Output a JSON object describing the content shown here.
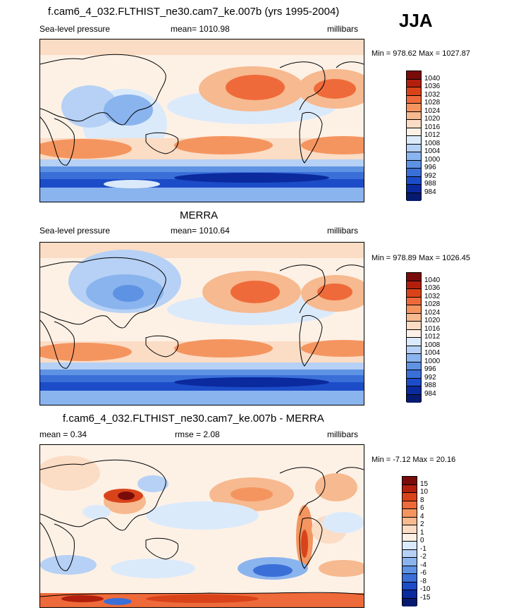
{
  "season": "JJA",
  "panels": [
    {
      "title": "f.cam6_4_032.FLTHIST_ne30.cam7_ke.007b (yrs 1995-2004)",
      "left_label": "Sea-level pressure",
      "center_label": "mean= 1010.98",
      "units": "millibars",
      "minmax": "Min = 978.62 Max = 1027.87",
      "colorbar": {
        "labels": [
          "1040",
          "1036",
          "1032",
          "1028",
          "1024",
          "1020",
          "1016",
          "1012",
          "1008",
          "1004",
          "1000",
          "996",
          "992",
          "988",
          "984"
        ],
        "colors": [
          "#7a0b0b",
          "#b2200d",
          "#d9431a",
          "#ef6a3a",
          "#f49560",
          "#f7b98f",
          "#fbdcc4",
          "#fdf1e6",
          "#dbeafb",
          "#b6d1f5",
          "#8ab4ee",
          "#5e92e3",
          "#3a6fd8",
          "#1c4cc8",
          "#0a2a9e",
          "#061a70"
        ]
      }
    },
    {
      "title": "MERRA",
      "left_label": "Sea-level pressure",
      "center_label": "mean= 1010.64",
      "units": "millibars",
      "minmax": "Min = 978.89 Max = 1026.45",
      "colorbar": {
        "labels": [
          "1040",
          "1036",
          "1032",
          "1028",
          "1024",
          "1020",
          "1016",
          "1012",
          "1008",
          "1004",
          "1000",
          "996",
          "992",
          "988",
          "984"
        ],
        "colors": [
          "#7a0b0b",
          "#b2200d",
          "#d9431a",
          "#ef6a3a",
          "#f49560",
          "#f7b98f",
          "#fbdcc4",
          "#fdf1e6",
          "#dbeafb",
          "#b6d1f5",
          "#8ab4ee",
          "#5e92e3",
          "#3a6fd8",
          "#1c4cc8",
          "#0a2a9e",
          "#061a70"
        ]
      }
    },
    {
      "title": "f.cam6_4_032.FLTHIST_ne30.cam7_ke.007b - MERRA",
      "left_label": "mean =   0.34",
      "center_label": "rmse =   2.08",
      "units": "millibars",
      "minmax": "Min =  -7.12 Max =  20.16",
      "colorbar": {
        "labels": [
          "15",
          "10",
          "8",
          "6",
          "4",
          "2",
          "1",
          "0",
          "-1",
          "-2",
          "-4",
          "-6",
          "-8",
          "-10",
          "-15"
        ],
        "colors": [
          "#7a0b0b",
          "#b2200d",
          "#d9431a",
          "#ef6a3a",
          "#f49560",
          "#f7b98f",
          "#fbdcc4",
          "#fdf1e6",
          "#dbeafb",
          "#b6d1f5",
          "#8ab4ee",
          "#5e92e3",
          "#3a6fd8",
          "#1c4cc8",
          "#0a2a9e",
          "#061a70"
        ]
      }
    }
  ]
}
